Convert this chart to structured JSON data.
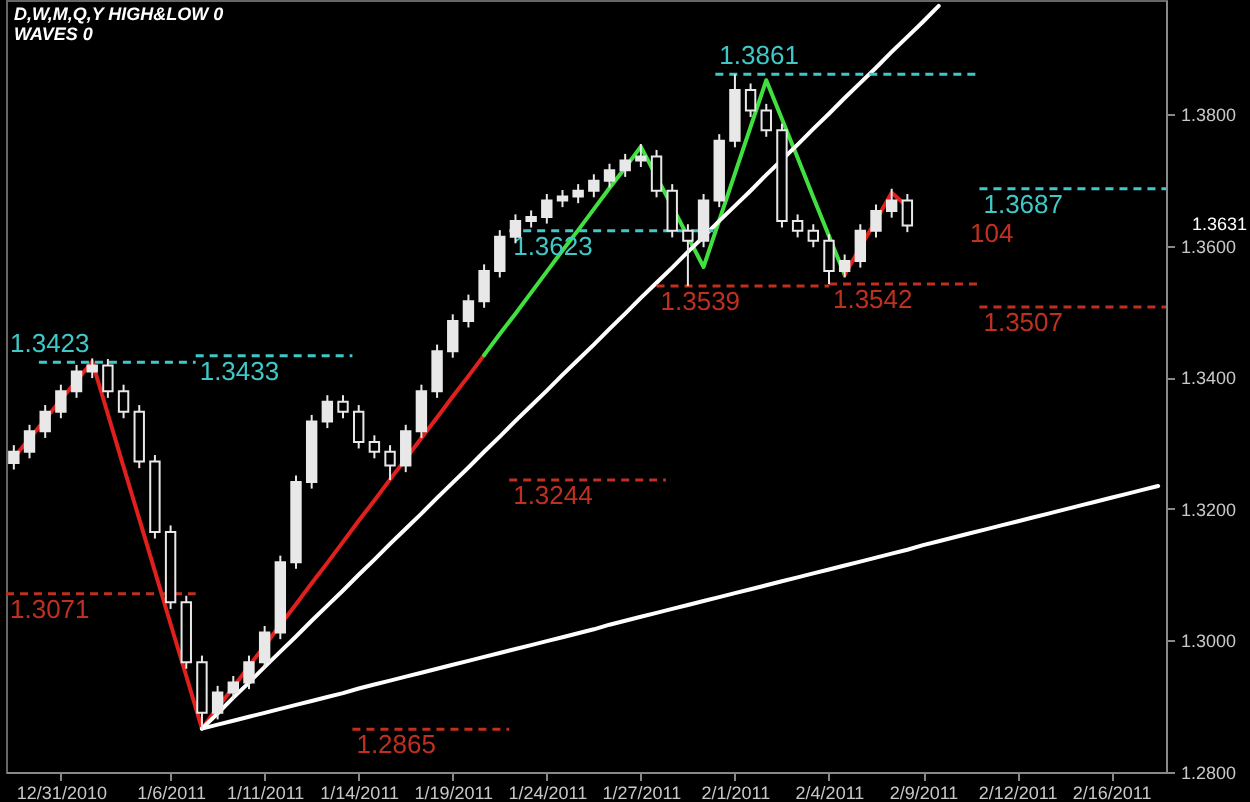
{
  "chart_data": {
    "type": "candlestick",
    "title": "D,W,M,Q,Y HIGH&LOW 0",
    "subtitle": "WAVES 0",
    "color": "#e8e8e8",
    "categories": [
      null,
      null,
      null,
      "12/31/2010",
      null,
      null,
      null,
      null,
      null,
      null,
      "1/6/2011",
      null,
      null,
      null,
      null,
      null,
      "1/11/2011",
      null,
      null,
      null,
      null,
      null,
      "1/14/2011",
      null,
      null,
      null,
      null,
      null,
      "1/19/2011",
      null,
      null,
      null,
      null,
      null,
      "1/24/2011",
      null,
      null,
      null,
      null,
      null,
      "1/27/2011",
      null,
      null,
      null,
      null,
      null,
      "2/1/2011",
      null,
      null,
      null,
      null,
      null,
      "2/4/2011",
      null,
      null,
      null,
      null,
      null,
      "2/9/2011",
      null,
      null,
      null,
      null,
      null,
      "2/12/2011",
      null,
      null,
      null,
      null,
      null,
      "2/16/2011",
      null,
      null,
      null
    ],
    "ohlc": [
      [
        1.327,
        1.3297,
        1.326,
        1.3287
      ],
      [
        1.3287,
        1.3328,
        1.3277,
        1.3318
      ],
      [
        1.3318,
        1.3358,
        1.3308,
        1.3348
      ],
      [
        1.3348,
        1.3389,
        1.3338,
        1.3379
      ],
      [
        1.3379,
        1.3419,
        1.3369,
        1.3409
      ],
      [
        1.3409,
        1.3429,
        1.3399,
        1.3418
      ],
      [
        1.3418,
        1.3428,
        1.3369,
        1.3379
      ],
      [
        1.3379,
        1.3389,
        1.3338,
        1.3348
      ],
      [
        1.3348,
        1.3358,
        1.3262,
        1.3272
      ],
      [
        1.3272,
        1.3282,
        1.3155,
        1.3165
      ],
      [
        1.3165,
        1.3175,
        1.3048,
        1.3058
      ],
      [
        1.3058,
        1.3068,
        1.2957,
        1.2967
      ],
      [
        1.2967,
        1.2977,
        1.2865,
        1.289
      ],
      [
        1.289,
        1.2931,
        1.288,
        1.2921
      ],
      [
        1.2921,
        1.2946,
        1.2911,
        1.2936
      ],
      [
        1.2936,
        1.2977,
        1.2926,
        1.2967
      ],
      [
        1.2967,
        1.3022,
        1.2957,
        1.3012
      ],
      [
        1.3012,
        1.3129,
        1.3002,
        1.3119
      ],
      [
        1.3119,
        1.3251,
        1.3109,
        1.3241
      ],
      [
        1.3241,
        1.3343,
        1.3231,
        1.3333
      ],
      [
        1.3333,
        1.3373,
        1.3323,
        1.3363
      ],
      [
        1.3363,
        1.3373,
        1.3338,
        1.3348
      ],
      [
        1.3348,
        1.3358,
        1.3292,
        1.3302
      ],
      [
        1.3302,
        1.3312,
        1.3277,
        1.3287
      ],
      [
        1.3287,
        1.3297,
        1.3244,
        1.3266
      ],
      [
        1.3266,
        1.3328,
        1.3256,
        1.3318
      ],
      [
        1.3318,
        1.3389,
        1.3308,
        1.3379
      ],
      [
        1.3379,
        1.345,
        1.3369,
        1.344
      ],
      [
        1.344,
        1.3496,
        1.343,
        1.3486
      ],
      [
        1.3486,
        1.3526,
        1.3476,
        1.3516
      ],
      [
        1.3516,
        1.3572,
        1.3506,
        1.3562
      ],
      [
        1.3562,
        1.3624,
        1.3552,
        1.3614
      ],
      [
        1.3614,
        1.3648,
        1.3604,
        1.3638
      ],
      [
        1.3638,
        1.3654,
        1.3628,
        1.3644
      ],
      [
        1.3644,
        1.3679,
        1.3634,
        1.3669
      ],
      [
        1.3669,
        1.3685,
        1.3659,
        1.3675
      ],
      [
        1.3675,
        1.3694,
        1.3665,
        1.3684
      ],
      [
        1.3684,
        1.3709,
        1.3674,
        1.3699
      ],
      [
        1.3699,
        1.3725,
        1.3689,
        1.3715
      ],
      [
        1.3715,
        1.374,
        1.3705,
        1.373
      ],
      [
        1.373,
        1.3755,
        1.372,
        1.3736
      ],
      [
        1.3736,
        1.3746,
        1.3674,
        1.3684
      ],
      [
        1.3684,
        1.3694,
        1.3613,
        1.3623
      ],
      [
        1.3623,
        1.3633,
        1.3539,
        1.3608
      ],
      [
        1.3608,
        1.3679,
        1.3598,
        1.3669
      ],
      [
        1.3669,
        1.377,
        1.3659,
        1.376
      ],
      [
        1.376,
        1.3861,
        1.375,
        1.3837
      ],
      [
        1.3837,
        1.3847,
        1.3796,
        1.3806
      ],
      [
        1.3806,
        1.3816,
        1.3766,
        1.3776
      ],
      [
        1.3776,
        1.3786,
        1.3628,
        1.3638
      ],
      [
        1.3638,
        1.3648,
        1.3613,
        1.3623
      ],
      [
        1.3623,
        1.3633,
        1.3598,
        1.3608
      ],
      [
        1.3608,
        1.3618,
        1.3542,
        1.3562
      ],
      [
        1.3562,
        1.3587,
        1.3552,
        1.3577
      ],
      [
        1.3577,
        1.3633,
        1.3567,
        1.3623
      ],
      [
        1.3623,
        1.3663,
        1.3613,
        1.3653
      ],
      [
        1.3653,
        1.3687,
        1.3643,
        1.3669
      ],
      [
        1.3669,
        1.3679,
        1.3621,
        1.3631
      ],
      null,
      null,
      null,
      null,
      null,
      null,
      null,
      null,
      null,
      null,
      null,
      null,
      null,
      null,
      null,
      null
    ],
    "series": [
      {
        "type": "line",
        "color": "#e0201c",
        "values": [
          1.3278,
          1.3307,
          1.3336,
          1.3366,
          1.3395,
          1.3424,
          1.3344,
          1.3264,
          1.3185,
          1.3105,
          1.3025,
          1.2946,
          1.2866,
          1.2898,
          1.2929,
          1.2961,
          1.2992,
          1.3024,
          1.3055,
          1.3087,
          1.3118,
          1.315,
          1.3182,
          1.3213,
          1.3245,
          1.3276,
          1.3308,
          1.3339,
          1.3371,
          1.3402,
          1.3434,
          null,
          null,
          null,
          null,
          null,
          null,
          null,
          null,
          null,
          null,
          null,
          null,
          null,
          null,
          null,
          null,
          null,
          null,
          null,
          null,
          null,
          null,
          null,
          null,
          null,
          null,
          null,
          null,
          null,
          null,
          null,
          null,
          null,
          null,
          null,
          null,
          null,
          null,
          null,
          null,
          null,
          null,
          null
        ]
      },
      {
        "type": "line",
        "color": "#40e040",
        "values": [
          null,
          null,
          null,
          null,
          null,
          null,
          null,
          null,
          null,
          null,
          null,
          null,
          null,
          null,
          null,
          null,
          null,
          null,
          null,
          null,
          null,
          null,
          null,
          null,
          null,
          null,
          null,
          null,
          null,
          null,
          1.3434,
          1.3466,
          1.3497,
          1.3529,
          1.3561,
          1.3593,
          1.3624,
          1.3656,
          1.3688,
          1.3719,
          1.3751,
          1.3705,
          1.366,
          1.3614,
          1.3568,
          1.3639,
          1.371,
          1.3781,
          1.3852,
          1.3793,
          1.3734,
          1.3674,
          1.3615,
          1.3556,
          null,
          null,
          null,
          null,
          null,
          null,
          null,
          null,
          null,
          null,
          null,
          null,
          null,
          null,
          null,
          null,
          null,
          null,
          null,
          null
        ]
      },
      {
        "type": "line",
        "color": "#e0201c",
        "values": [
          null,
          null,
          null,
          null,
          null,
          null,
          null,
          null,
          null,
          null,
          null,
          null,
          null,
          null,
          null,
          null,
          null,
          null,
          null,
          null,
          null,
          null,
          null,
          null,
          null,
          null,
          null,
          null,
          null,
          null,
          null,
          null,
          null,
          null,
          null,
          null,
          null,
          null,
          null,
          null,
          null,
          null,
          null,
          null,
          null,
          null,
          null,
          null,
          null,
          null,
          null,
          null,
          null,
          1.3556,
          1.3598,
          1.3639,
          1.3681,
          1.366,
          null,
          null,
          null,
          null,
          null,
          null,
          null,
          null,
          null,
          null,
          null,
          null,
          null,
          null,
          null,
          null
        ]
      },
      {
        "type": "line",
        "color": "#ffffff",
        "values": [
          null,
          null,
          null,
          null,
          null,
          null,
          null,
          null,
          null,
          null,
          null,
          null,
          1.2866,
          1.2889,
          1.2913,
          1.2936,
          1.296,
          1.2983,
          1.3006,
          1.303,
          1.3053,
          1.3076,
          1.31,
          1.3123,
          1.3147,
          1.317,
          1.3193,
          1.3217,
          1.324,
          1.3263,
          1.3287,
          1.331,
          1.3334,
          1.3357,
          1.338,
          1.3404,
          1.3427,
          1.345,
          1.3474,
          1.3497,
          1.3521,
          1.3544,
          1.3567,
          1.3591,
          1.3614,
          1.3638,
          1.3661,
          1.3684,
          1.3708,
          1.3731,
          1.3754,
          1.3778,
          1.3801,
          1.3825,
          1.3848,
          1.3871,
          1.3895,
          1.3918,
          1.3941,
          1.3965,
          null,
          null,
          null,
          null,
          null,
          null,
          null,
          null,
          null,
          null,
          null,
          null,
          null,
          null
        ]
      },
      {
        "type": "line",
        "color": "#ffffff",
        "values": [
          null,
          null,
          null,
          null,
          null,
          null,
          null,
          null,
          null,
          null,
          null,
          null,
          1.2866,
          1.2872,
          1.2878,
          1.2884,
          1.289,
          1.2896,
          1.2902,
          1.2908,
          1.2914,
          1.292,
          1.2927,
          1.2933,
          1.2939,
          1.2945,
          1.2951,
          1.2957,
          1.2963,
          1.2969,
          1.2975,
          1.2981,
          1.2987,
          1.2993,
          1.2999,
          1.3005,
          1.3011,
          1.3017,
          1.3024,
          1.303,
          1.3036,
          1.3042,
          1.3048,
          1.3054,
          1.306,
          1.3066,
          1.3072,
          1.3078,
          1.3084,
          1.309,
          1.3096,
          1.3102,
          1.3108,
          1.3114,
          1.312,
          1.3126,
          1.3132,
          1.3138,
          1.3145,
          1.3151,
          1.3157,
          1.3163,
          1.3169,
          1.3175,
          1.3181,
          1.3187,
          1.3193,
          1.3199,
          1.3205,
          1.3211,
          1.3217,
          1.3223,
          1.3229,
          1.3235
        ]
      }
    ],
    "ylim": [
      1.28,
      1.3974
    ],
    "yticks": [
      {
        "value": 1.28,
        "label": "1.2800"
      },
      {
        "value": 1.3,
        "label": "1.3000"
      },
      {
        "value": 1.32,
        "label": "1.3200"
      },
      {
        "value": 1.34,
        "label": "1.3400"
      },
      {
        "value": 1.36,
        "label": "1.3600"
      },
      {
        "value": 1.38,
        "label": "1.3800"
      }
    ],
    "ref_lines": [
      {
        "axis": "y",
        "value": 1.3423,
        "label": "1.3423",
        "color": "#40c8c8",
        "line_style": "dashed"
      },
      {
        "axis": "y",
        "value": 1.3433,
        "label": "1.3433",
        "color": "#40c8c8",
        "line_style": "dashed"
      },
      {
        "axis": "y",
        "value": 1.3623,
        "label": "1.3623",
        "color": "#40c8c8",
        "line_style": "dashed"
      },
      {
        "axis": "y",
        "value": 1.3861,
        "label": "1.3861",
        "color": "#40c8c8",
        "line_style": "dashed"
      },
      {
        "axis": "y",
        "value": 1.3687,
        "label": "1.3687",
        "color": "#40c8c8",
        "line_style": "dashed"
      },
      {
        "axis": "y",
        "value": 1.3539,
        "label": "1.3539",
        "color": "#c03020",
        "line_style": "dashed"
      },
      {
        "axis": "y",
        "value": 1.3542,
        "label": "1.3542",
        "color": "#c03020",
        "line_style": "dashed"
      },
      {
        "axis": "y",
        "value": 1.3507,
        "label": "1.3507",
        "color": "#c03020",
        "line_style": "dashed"
      },
      {
        "axis": "y",
        "value": 1.3244,
        "label": "1.3244",
        "color": "#c03020",
        "line_style": "dashed"
      },
      {
        "axis": "y",
        "value": 1.3071,
        "label": "1.3071",
        "color": "#c03020",
        "line_style": "dashed"
      },
      {
        "axis": "y",
        "value": 1.2865,
        "label": "1.2865",
        "color": "#c03020",
        "line_style": "dashed"
      }
    ],
    "annotations": [
      "104",
      "1.3631"
    ],
    "grid": false,
    "marker": "none"
  }
}
